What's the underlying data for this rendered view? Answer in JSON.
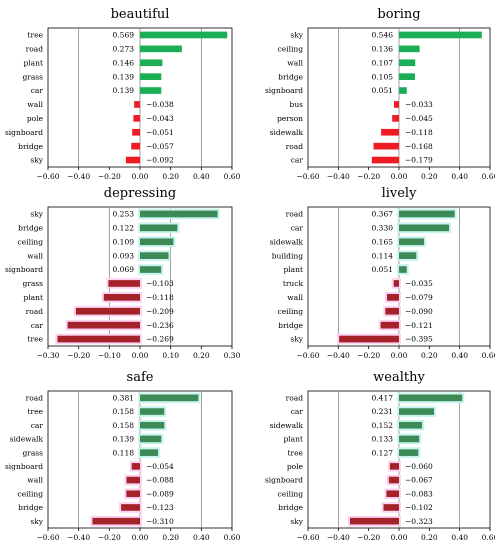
{
  "chart_data": [
    {
      "type": "bar",
      "orientation": "horizontal",
      "title": "beautiful",
      "xlim": [
        -0.6,
        0.6
      ],
      "xticks": [
        "−0.60",
        "−0.40",
        "−0.20",
        "0.00",
        "0.20",
        "0.40",
        "0.60"
      ],
      "gridlines_at": [
        -0.4,
        0.0,
        0.4
      ],
      "categories": [
        "tree",
        "road",
        "plant",
        "grass",
        "car",
        "wall",
        "pole",
        "signboard",
        "bridge",
        "sky"
      ],
      "values": [
        0.569,
        0.273,
        0.146,
        0.139,
        0.139,
        -0.038,
        -0.043,
        -0.051,
        -0.057,
        -0.092
      ],
      "value_labels": [
        "0.569",
        "0.273",
        "0.146",
        "0.139",
        "0.139",
        "−0.038",
        "−0.043",
        "−0.051",
        "−0.057",
        "−0.092"
      ]
    },
    {
      "type": "bar",
      "orientation": "horizontal",
      "title": "boring",
      "xlim": [
        -0.6,
        0.6
      ],
      "xticks": [
        "−0.60",
        "−0.40",
        "−0.20",
        "0.00",
        "0.20",
        "0.40",
        "0.60"
      ],
      "gridlines_at": [
        -0.4,
        0.0,
        0.4
      ],
      "categories": [
        "sky",
        "ceiling",
        "wall",
        "bridge",
        "signboard",
        "bus",
        "person",
        "sidewalk",
        "road",
        "car"
      ],
      "values": [
        0.546,
        0.136,
        0.107,
        0.105,
        0.051,
        -0.033,
        -0.045,
        -0.118,
        -0.168,
        -0.179
      ],
      "value_labels": [
        "0.546",
        "0.136",
        "0.107",
        "0.105",
        "0.051",
        "−0.033",
        "−0.045",
        "−0.118",
        "−0.168",
        "−0.179"
      ]
    },
    {
      "type": "bar",
      "orientation": "horizontal",
      "title": "depressing",
      "xlim": [
        -0.3,
        0.3
      ],
      "xticks": [
        "−0.30",
        "−0.20",
        "−0.10",
        "0.00",
        "0.10",
        "0.20",
        "0.30"
      ],
      "gridlines_at": [
        -0.1,
        0.1
      ],
      "categories": [
        "sky",
        "bridge",
        "ceiling",
        "wall",
        "signboard",
        "grass",
        "plant",
        "road",
        "car",
        "tree"
      ],
      "values": [
        0.253,
        0.122,
        0.109,
        0.093,
        0.069,
        -0.103,
        -0.118,
        -0.209,
        -0.236,
        -0.269
      ],
      "value_labels": [
        "0.253",
        "0.122",
        "0.109",
        "0.093",
        "0.069",
        "−0.103",
        "−0.118",
        "−0.209",
        "−0.236",
        "−0.269"
      ]
    },
    {
      "type": "bar",
      "orientation": "horizontal",
      "title": "lively",
      "xlim": [
        -0.6,
        0.6
      ],
      "xticks": [
        "−0.60",
        "−0.40",
        "−0.20",
        "0.00",
        "0.20",
        "0.40",
        "0.60"
      ],
      "gridlines_at": [
        -0.4,
        0.0,
        0.4
      ],
      "categories": [
        "road",
        "car",
        "sidewalk",
        "building",
        "plant",
        "truck",
        "wall",
        "ceiling",
        "bridge",
        "sky"
      ],
      "values": [
        0.367,
        0.33,
        0.165,
        0.114,
        0.051,
        -0.035,
        -0.079,
        -0.09,
        -0.121,
        -0.395
      ],
      "value_labels": [
        "0.367",
        "0.330",
        "0.165",
        "0.114",
        "0.051",
        "−0.035",
        "−0.079",
        "−0.090",
        "−0.121",
        "−0.395"
      ]
    },
    {
      "type": "bar",
      "orientation": "horizontal",
      "title": "safe",
      "xlim": [
        -0.6,
        0.6
      ],
      "xticks": [
        "−0.60",
        "−0.40",
        "−0.20",
        "0.00",
        "0.20",
        "0.40",
        "0.60"
      ],
      "gridlines_at": [
        -0.4,
        0.0,
        0.4
      ],
      "categories": [
        "road",
        "tree",
        "car",
        "sidewalk",
        "grass",
        "signboard",
        "wall",
        "ceiling",
        "bridge",
        "sky"
      ],
      "values": [
        0.381,
        0.158,
        0.158,
        0.139,
        0.118,
        -0.054,
        -0.088,
        -0.089,
        -0.123,
        -0.31
      ],
      "value_labels": [
        "0.381",
        "0.158",
        "0.158",
        "0.139",
        "0.118",
        "−0.054",
        "−0.088",
        "−0.089",
        "−0.123",
        "−0.310"
      ]
    },
    {
      "type": "bar",
      "orientation": "horizontal",
      "title": "wealthy",
      "xlim": [
        -0.6,
        0.6
      ],
      "xticks": [
        "−0.60",
        "−0.40",
        "−0.20",
        "0.00",
        "0.20",
        "0.40",
        "0.60"
      ],
      "gridlines_at": [
        -0.4,
        0.0,
        0.4
      ],
      "categories": [
        "road",
        "car",
        "sidewalk",
        "plant",
        "tree",
        "pole",
        "signboard",
        "ceiling",
        "bridge",
        "sky"
      ],
      "values": [
        0.417,
        0.231,
        0.152,
        0.133,
        0.127,
        -0.06,
        -0.067,
        -0.083,
        -0.102,
        -0.323
      ],
      "value_labels": [
        "0.417",
        "0.231",
        "0.152",
        "0.133",
        "0.127",
        "−0.060",
        "−0.067",
        "−0.083",
        "−0.102",
        "−0.323"
      ]
    }
  ],
  "colors": {
    "positive": "#1aaf54",
    "negative": "#ee1c25",
    "positive_dark": "#3d8a57",
    "negative_dark": "#a4222a",
    "positive_halo": "#c8f3ee",
    "negative_halo": "#fbd2f0",
    "axis": "#000000",
    "grid": "#777777"
  },
  "style": {
    "shadowed_panels": [
      2,
      3,
      4,
      5
    ]
  }
}
